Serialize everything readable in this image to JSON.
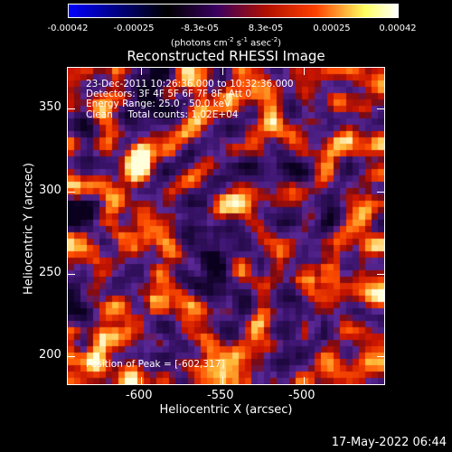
{
  "colorbar": {
    "ticks": [
      "-0.00042",
      "-0.00025",
      "-8.3e-05",
      "8.3e-05",
      "0.00025",
      "0.00042"
    ],
    "units_prefix": "(photons cm",
    "units_exp1": "-2",
    "units_mid": " s",
    "units_exp2": "-1",
    "units_mid2": " asec",
    "units_exp3": "-2",
    "units_suffix": ")",
    "stops": [
      "#0000ff",
      "#000000",
      "#3a0060",
      "#b01000",
      "#ff4000",
      "#ffff60",
      "#ffffff"
    ]
  },
  "plot": {
    "title": "Reconstructed RHESSI Image",
    "xlabel": "Heliocentric X (arcsec)",
    "ylabel": "Heliocentric Y (arcsec)",
    "xticks": [
      "-600",
      "-550",
      "-500"
    ],
    "yticks": [
      "350",
      "300",
      "250",
      "200"
    ]
  },
  "info": {
    "line1": "23-Dec-2011 10:26:36.000 to 10:32:36.000",
    "line2": "Detectors: 3F 4F 5F 6F 7F 8F, Att 0",
    "line3": "Energy Range: 25.0 - 50.0 keV",
    "line4": "Clean     Total counts: 1.02E+04",
    "peak": "Position of Peak = [-602,317]"
  },
  "timestamp": "17-May-2022 06:44"
}
